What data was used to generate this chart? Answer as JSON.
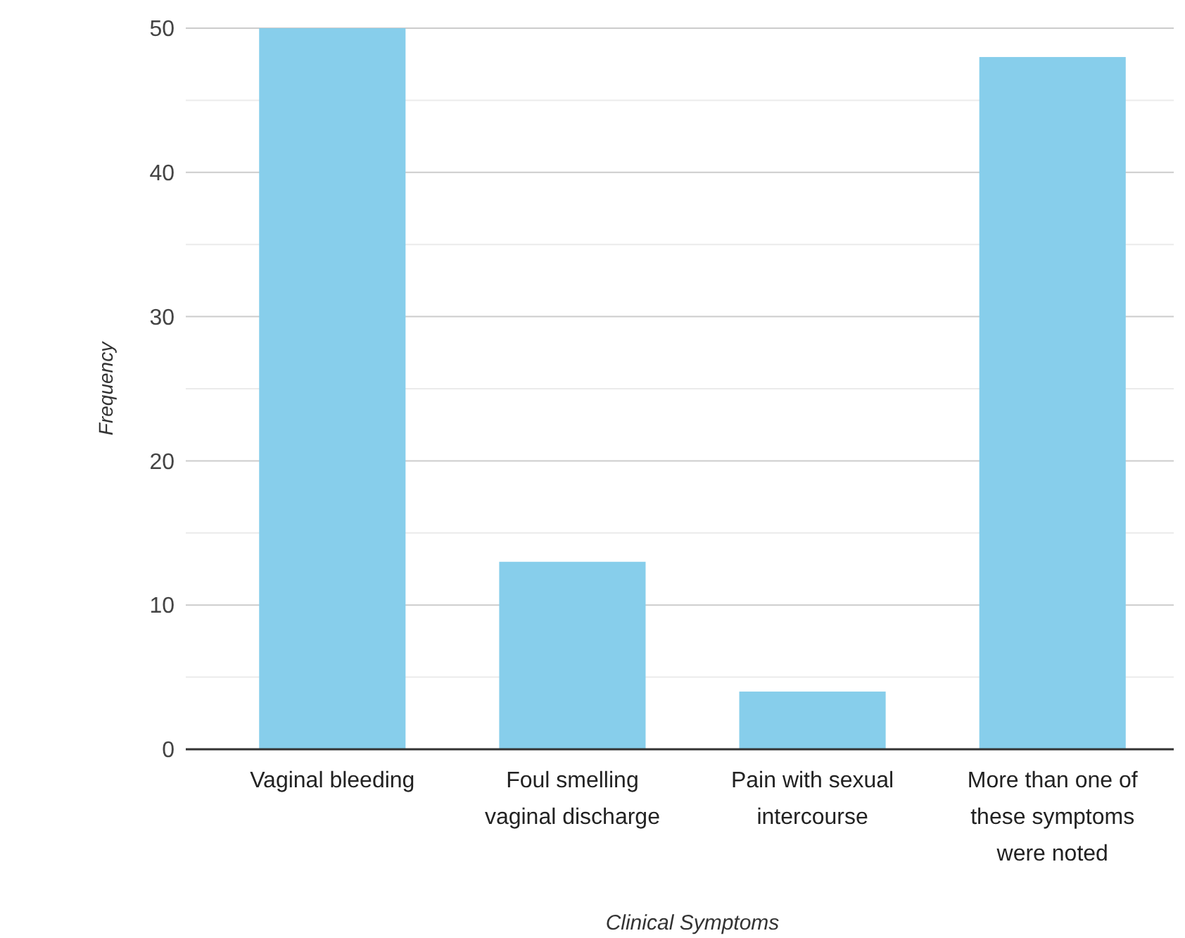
{
  "chart_data": {
    "type": "bar",
    "xlabel": "Clinical Symptoms",
    "ylabel": "Frequency",
    "categories": [
      "Vaginal bleeding",
      "Foul smelling vaginal discharge",
      "Pain with sexual intercourse",
      "More than one of these symptoms were noted"
    ],
    "values": [
      50,
      13,
      4,
      48
    ],
    "color": "#87ceeb",
    "ylim": [
      0,
      50
    ],
    "yticks": [
      0,
      {
        "value": 5,
        "label": null
      },
      10,
      {
        "value": 15,
        "label": null
      },
      20,
      {
        "value": 25,
        "label": null
      },
      30,
      {
        "value": 35,
        "label": null
      },
      40,
      {
        "value": 45,
        "label": null
      },
      50
    ],
    "grid": true
  }
}
